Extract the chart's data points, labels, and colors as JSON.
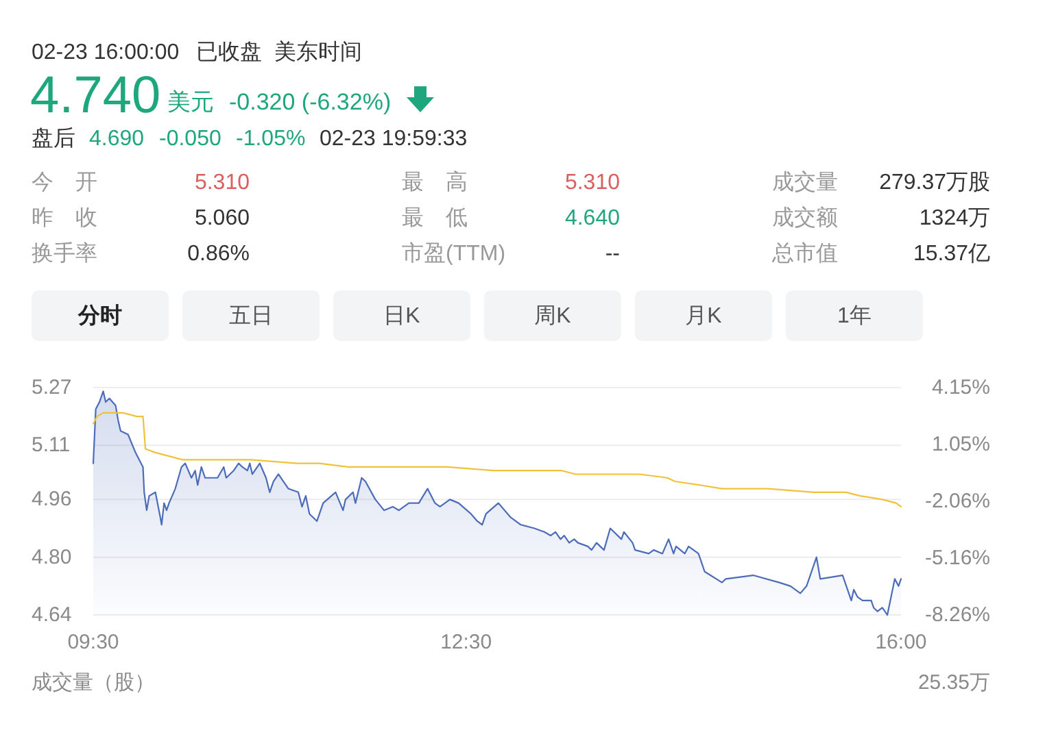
{
  "chart_data": {
    "type": "line",
    "series": [
      {
        "type": "area",
        "color": "#4c6cb9",
        "x": [
          9.5,
          9.52,
          9.55,
          9.58,
          9.6,
          9.63,
          9.68,
          9.7,
          9.72,
          9.78,
          9.84,
          9.87,
          9.9,
          9.91,
          9.93,
          9.95,
          10.0,
          10.04,
          10.05,
          10.07,
          10.09,
          10.11,
          10.16,
          10.21,
          10.24,
          10.29,
          10.32,
          10.34,
          10.37,
          10.4,
          10.5,
          10.55,
          10.57,
          10.63,
          10.67,
          10.7,
          10.74,
          10.76,
          10.78,
          10.84,
          10.89,
          10.92,
          10.95,
          10.99,
          11.07,
          11.15,
          11.18,
          11.21,
          11.24,
          11.3,
          11.35,
          11.45,
          11.51,
          11.53,
          11.59,
          11.61,
          11.66,
          11.69,
          11.77,
          11.84,
          11.91,
          11.96,
          12.04,
          12.12,
          12.19,
          12.25,
          12.29,
          12.37,
          12.44,
          12.54,
          12.59,
          12.63,
          12.66,
          12.76,
          12.86,
          12.94,
          13.05,
          13.13,
          13.18,
          13.22,
          13.26,
          13.29,
          13.33,
          13.37,
          13.4,
          13.48,
          13.51,
          13.55,
          13.61,
          13.66,
          13.75,
          13.77,
          13.84,
          13.86,
          13.97,
          14.01,
          14.08,
          14.13,
          14.17,
          14.19,
          14.26,
          14.29,
          14.37,
          14.4,
          14.42,
          14.56,
          14.59,
          14.81,
          15.02,
          15.11,
          15.19,
          15.24,
          15.32,
          15.35,
          15.53,
          15.55,
          15.6,
          15.62,
          15.65,
          15.69,
          15.76,
          15.78,
          15.81,
          15.85,
          15.89,
          15.92,
          15.95,
          15.98,
          16.0
        ],
        "values": [
          5.06,
          5.21,
          5.23,
          5.26,
          5.23,
          5.24,
          5.22,
          5.18,
          5.15,
          5.14,
          5.09,
          5.07,
          5.05,
          4.98,
          4.93,
          4.97,
          4.98,
          4.91,
          4.89,
          4.95,
          4.93,
          4.95,
          4.99,
          5.05,
          5.06,
          5.02,
          5.04,
          5.0,
          5.05,
          5.02,
          5.02,
          5.05,
          5.02,
          5.04,
          5.06,
          5.05,
          5.04,
          5.06,
          5.03,
          5.06,
          5.02,
          4.98,
          5.01,
          5.03,
          4.99,
          4.98,
          4.94,
          4.97,
          4.92,
          4.9,
          4.95,
          4.98,
          4.93,
          4.96,
          4.98,
          4.95,
          5.02,
          5.01,
          4.96,
          4.93,
          4.94,
          4.93,
          4.95,
          4.95,
          4.99,
          4.95,
          4.94,
          4.96,
          4.95,
          4.92,
          4.9,
          4.89,
          4.92,
          4.95,
          4.91,
          4.89,
          4.88,
          4.87,
          4.86,
          4.87,
          4.85,
          4.86,
          4.84,
          4.85,
          4.84,
          4.83,
          4.82,
          4.84,
          4.82,
          4.88,
          4.85,
          4.87,
          4.84,
          4.82,
          4.81,
          4.82,
          4.81,
          4.85,
          4.81,
          4.83,
          4.81,
          4.83,
          4.81,
          4.78,
          4.76,
          4.73,
          4.74,
          4.75,
          4.73,
          4.72,
          4.7,
          4.72,
          4.8,
          4.74,
          4.75,
          4.73,
          4.68,
          4.71,
          4.69,
          4.68,
          4.68,
          4.66,
          4.65,
          4.66,
          4.64,
          4.69,
          4.74,
          4.72,
          4.74
        ]
      },
      {
        "type": "line",
        "color": "#f0c23b",
        "x": [
          9.5,
          9.53,
          9.58,
          9.65,
          9.74,
          9.85,
          9.9,
          9.92,
          10.0,
          10.11,
          10.22,
          10.41,
          10.77,
          11.14,
          11.32,
          11.55,
          11.91,
          12.35,
          12.72,
          12.94,
          13.27,
          13.38,
          13.9,
          14.12,
          14.18,
          14.38,
          14.56,
          14.93,
          15.3,
          15.56,
          15.67,
          15.85,
          15.96,
          16.0
        ],
        "values": [
          5.17,
          5.19,
          5.2,
          5.2,
          5.2,
          5.19,
          5.19,
          5.1,
          5.09,
          5.08,
          5.07,
          5.07,
          5.07,
          5.06,
          5.06,
          5.05,
          5.05,
          5.05,
          5.04,
          5.04,
          5.04,
          5.03,
          5.03,
          5.02,
          5.01,
          5.0,
          4.99,
          4.99,
          4.98,
          4.98,
          4.97,
          4.96,
          4.95,
          4.94
        ]
      }
    ],
    "xlim": [
      9.5,
      16
    ],
    "xticks": [
      {
        "value": 9.5,
        "label": "09:30"
      },
      {
        "value": 12.5,
        "label": "12:30"
      },
      {
        "value": 16,
        "label": "16:00"
      }
    ],
    "ylim": [
      4.64,
      5.27
    ],
    "yticks": [
      5.27,
      5.11,
      4.96,
      {
        "value": 4.8,
        "label": "4.80"
      },
      4.64
    ],
    "y2lim": [
      -8.26,
      4.15
    ],
    "y2ticks": [
      {
        "value": 4.15,
        "label": "4.15%"
      },
      {
        "value": 1.05,
        "label": "1.05%"
      },
      {
        "value": -2.06,
        "label": "-2.06%"
      },
      {
        "value": -5.16,
        "label": "-5.16%"
      },
      {
        "value": -8.26,
        "label": "-8.26%"
      }
    ],
    "grid": "y",
    "annotations": [
      "02-23 16:00:00",
      "已收盘",
      "美东时间",
      "4.740",
      "美元",
      "-0.320 (-6.32%)",
      "盘后",
      "4.690",
      "-0.050",
      "-1.05%",
      "02-23 19:59:33",
      "今　开",
      "5.310",
      "最　高",
      "5.310",
      "成交量",
      "279.37万股",
      "昨　收",
      "5.060",
      "最　低",
      "4.640",
      "成交额",
      "1324万",
      "换手率",
      "0.86%",
      "市盈(TTM)",
      "--",
      "总市值",
      "15.37亿",
      "分时",
      "五日",
      "日K",
      "周K",
      "月K",
      "1年",
      "成交量（股）",
      "25.35万"
    ]
  }
}
